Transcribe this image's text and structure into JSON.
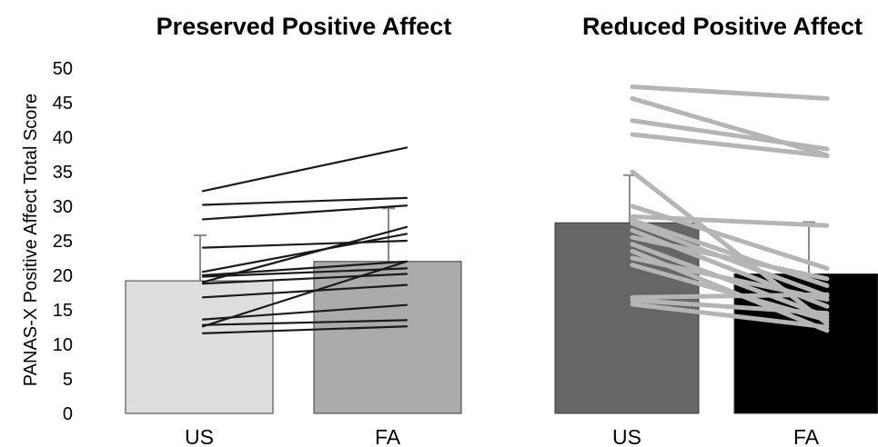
{
  "chart_data": {
    "type": "bar",
    "ylabel": "PANAS-X Positive Affect Total Score",
    "ylim": [
      0,
      50
    ],
    "y_ticks": [
      "0",
      "5",
      "10",
      "15",
      "20",
      "25",
      "30",
      "35",
      "40",
      "45",
      "50"
    ],
    "categories": [
      "US",
      "FA"
    ],
    "panels": [
      {
        "title": "Preserved Positive Affect",
        "bars": [
          {
            "category": "US",
            "value": 19.2,
            "error": 6.6,
            "color": "#dedede"
          },
          {
            "category": "FA",
            "value": 22.0,
            "error": 7.7,
            "color": "#ababab"
          }
        ],
        "line_color": "#1a1a1a",
        "lines": [
          [
            32.2,
            38.5
          ],
          [
            30.2,
            31.2
          ],
          [
            28.1,
            30.1
          ],
          [
            24.0,
            25.0
          ],
          [
            20.5,
            26.0
          ],
          [
            19.0,
            27.0
          ],
          [
            20.0,
            22.0
          ],
          [
            19.8,
            21.0
          ],
          [
            18.8,
            20.2
          ],
          [
            16.8,
            18.6
          ],
          [
            12.6,
            22.0
          ],
          [
            13.6,
            15.7
          ],
          [
            12.8,
            13.5
          ],
          [
            11.6,
            12.6
          ]
        ]
      },
      {
        "title": "Reduced Positive Affect",
        "bars": [
          {
            "category": "US",
            "value": 27.6,
            "error": 6.9,
            "color": "#666666"
          },
          {
            "category": "FA",
            "value": 20.2,
            "error": 7.5,
            "color": "#000000"
          }
        ],
        "line_color": "#b5b5b5",
        "lines": [
          [
            47.3,
            45.6
          ],
          [
            45.6,
            37.4
          ],
          [
            42.4,
            38.3
          ],
          [
            40.4,
            37.3
          ],
          [
            35.0,
            13.0
          ],
          [
            30.0,
            21.0
          ],
          [
            28.5,
            27.2
          ],
          [
            28.0,
            18.5
          ],
          [
            27.5,
            17.0
          ],
          [
            26.5,
            15.5
          ],
          [
            25.5,
            19.5
          ],
          [
            24.5,
            14.0
          ],
          [
            23.5,
            12.0
          ],
          [
            22.5,
            16.5
          ],
          [
            21.5,
            13.5
          ],
          [
            16.8,
            17.2
          ],
          [
            16.4,
            14.5
          ],
          [
            15.8,
            12.5
          ]
        ]
      }
    ]
  }
}
